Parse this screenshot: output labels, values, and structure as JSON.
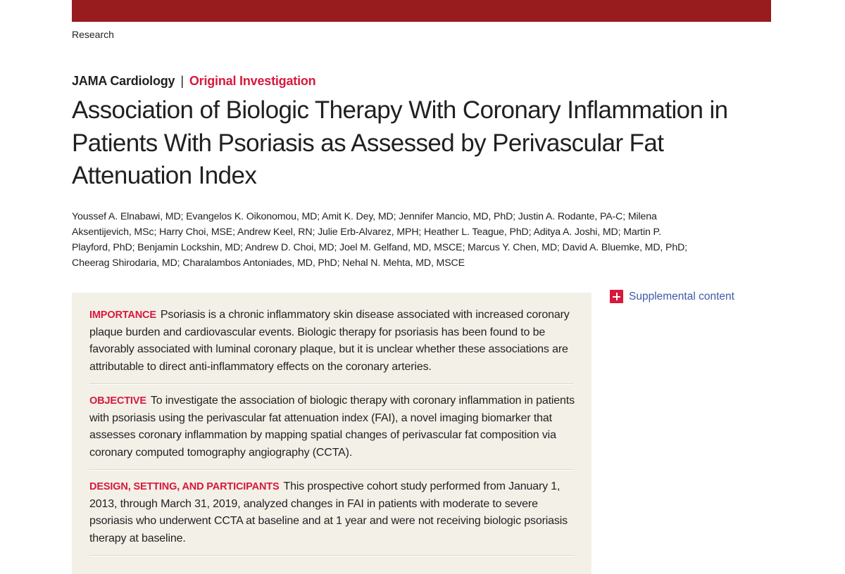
{
  "header": {
    "section": "Research",
    "journal": "JAMA Cardiology",
    "separator": "|",
    "article_type": "Original Investigation"
  },
  "title": "Association of Biologic Therapy With Coronary Inflammation in Patients With Psoriasis as Assessed by Perivascular Fat Attenuation Index",
  "authors": "Youssef A. Elnabawi, MD; Evangelos K. Oikonomou, MD; Amit K. Dey, MD; Jennifer Mancio, MD, PhD; Justin A. Rodante, PA-C; Milena Aksentijevich, MSc; Harry Choi, MSE; Andrew Keel, RN; Julie Erb-Alvarez, MPH; Heather L. Teague, PhD; Aditya A. Joshi, MD; Martin P. Playford, PhD; Benjamin Lockshin, MD; Andrew D. Choi, MD; Joel M. Gelfand, MD, MSCE; Marcus Y. Chen, MD; David A. Bluemke, MD, PhD; Cheerag Shirodaria, MD; Charalambos Antoniades, MD, PhD; Nehal N. Mehta, MD, MSCE",
  "supplemental": {
    "label": "Supplemental content",
    "icon": "plus-icon"
  },
  "abstract": [
    {
      "heading": "IMPORTANCE",
      "text": "Psoriasis is a chronic inflammatory skin disease associated with increased coronary plaque burden and cardiovascular events. Biologic therapy for psoriasis has been found to be favorably associated with luminal coronary plaque, but it is unclear whether these associations are attributable to direct anti-inflammatory effects on the coronary arteries."
    },
    {
      "heading": "OBJECTIVE",
      "text": "To investigate the association of biologic therapy with coronary inflammation in patients with psoriasis using the perivascular fat attenuation index (FAI), a novel imaging biomarker that assesses coronary inflammation by mapping spatial changes of perivascular fat composition via coronary computed tomography angiography (CCTA)."
    },
    {
      "heading": "DESIGN, SETTING, AND PARTICIPANTS",
      "text": "This prospective cohort study performed from January 1, 2013, through March 31, 2019, analyzed changes in FAI in patients with moderate to severe psoriasis who underwent CCTA at baseline and at 1 year and were not receiving biologic psoriasis therapy at baseline."
    }
  ],
  "colors": {
    "brand_bar": "#981b1e",
    "accent": "#d7193c",
    "link": "#3d5aa8",
    "abstract_bg": "#f2f0e7"
  }
}
